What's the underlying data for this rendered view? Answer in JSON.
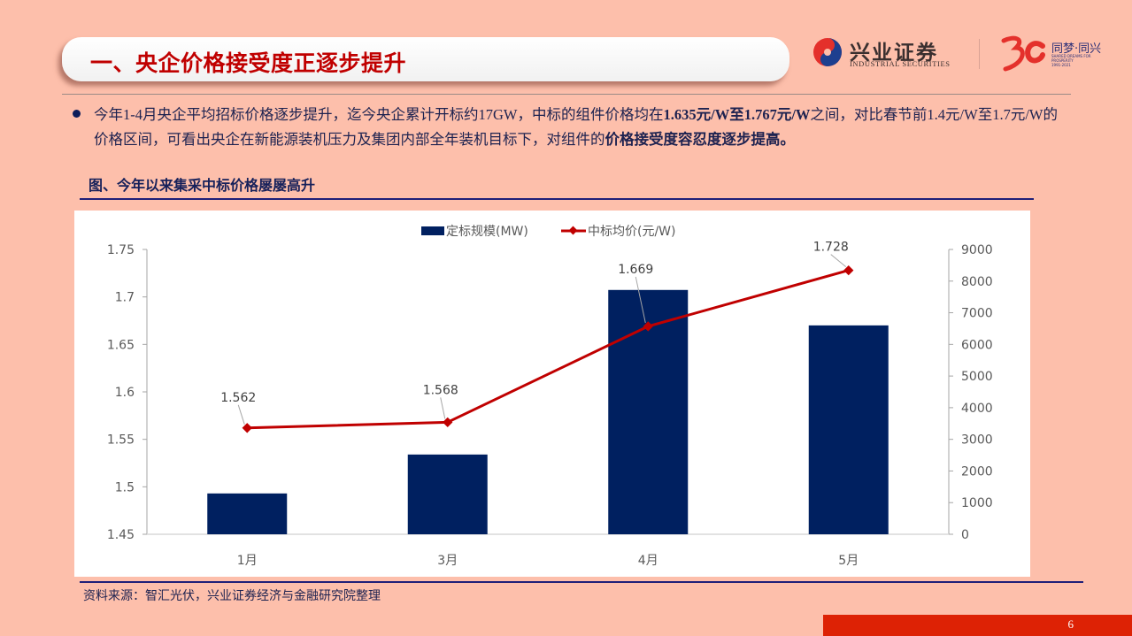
{
  "header": {
    "section_title": "一、央企价格接受度正逐步提升",
    "logo": {
      "name_cn": "兴业证券",
      "name_en": "INDUSTRIAL SECURITIES",
      "anniversary_mark": "30",
      "slogan": "同梦·同兴",
      "slogan_en": "SHARED DREAMS FOR PROSPERITY",
      "years": "1991-2021"
    }
  },
  "body": {
    "bullet_paragraph": {
      "part1": "今年1-4月央企平均招标价格逐步提升，迄今央企累计开标约17GW，中标的组件价格均在",
      "bold1": "1.635元/W至1.767元/W",
      "part2": "之间，对比春节前1.4元/W至1.7元/W的价格区间，可看出央企在新能源装机压力及集团内部全年装机目标下，对组件的",
      "bold2": "价格接受度容忍度逐步提高。"
    }
  },
  "figure": {
    "title": "图、今年以来集采中标价格屡屡高升",
    "source": "资料来源：智汇光伏，兴业证券经济与金融研究院整理"
  },
  "footer": {
    "page_number": "6"
  },
  "colors": {
    "background": "#fdbfab",
    "title_red": "#c00000",
    "bar_navy": "#002060",
    "line_red": "#c00000",
    "rule_navy": "#1f1f78",
    "footer_red": "#dd2205"
  },
  "chart_data": {
    "type": "bar+line",
    "title": "图、今年以来集采中标价格屡屡高升",
    "categories": [
      "1月",
      "3月",
      "4月",
      "5月"
    ],
    "series": [
      {
        "name": "定标规模(MW)",
        "type": "bar",
        "axis": "right",
        "color": "#002060",
        "values": [
          1290,
          2520,
          7720,
          6600
        ]
      },
      {
        "name": "中标均价(元/W)",
        "type": "line",
        "axis": "left",
        "color": "#c00000",
        "values": [
          1.562,
          1.568,
          1.669,
          1.728
        ],
        "data_labels": [
          "1.562",
          "1.568",
          "1.669",
          "1.728"
        ]
      }
    ],
    "left_axis": {
      "min": 1.45,
      "max": 1.75,
      "step": 0.05,
      "ticks": [
        "1.75",
        "1.7",
        "1.65",
        "1.6",
        "1.55",
        "1.5",
        "1.45"
      ]
    },
    "right_axis": {
      "min": 0,
      "max": 9000,
      "step": 1000,
      "ticks": [
        "9000",
        "8000",
        "7000",
        "6000",
        "5000",
        "4000",
        "3000",
        "2000",
        "1000",
        "0"
      ]
    },
    "legend": {
      "position": "top",
      "entries": [
        "定标规模(MW)",
        "中标均价(元/W)"
      ]
    },
    "grid": false
  }
}
